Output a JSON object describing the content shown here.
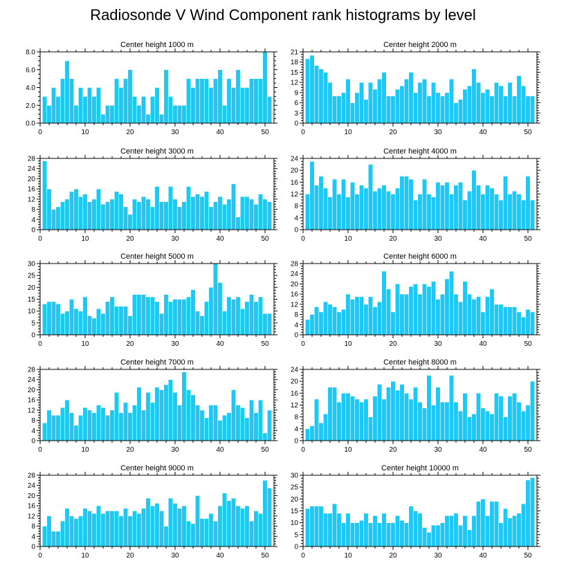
{
  "figure_title": "Radiosonde V Wind Component rank histograms by level",
  "colors": {
    "bar": "#1ec8f5",
    "bar_edge": "#ffffff",
    "axis": "#000000"
  },
  "chart_data": [
    {
      "type": "bar",
      "title": "Center height 1000 m",
      "x": [
        1,
        2,
        3,
        4,
        5,
        6,
        7,
        8,
        9,
        10,
        11,
        12,
        13,
        14,
        15,
        16,
        17,
        18,
        19,
        20,
        21,
        22,
        23,
        24,
        25,
        26,
        27,
        28,
        29,
        30,
        31,
        32,
        33,
        34,
        35,
        36,
        37,
        38,
        39,
        40,
        41,
        42,
        43,
        44,
        45,
        46,
        47,
        48,
        49,
        50,
        51
      ],
      "values": [
        3,
        2,
        4,
        3,
        5,
        7,
        5,
        2,
        4,
        3,
        4,
        3,
        4,
        1,
        2,
        2,
        5,
        4,
        5,
        6,
        3,
        2,
        3,
        1,
        3,
        4,
        1,
        6,
        3,
        2,
        2,
        2,
        5,
        4,
        5,
        5,
        5,
        4,
        5,
        6,
        2,
        5,
        4,
        6,
        4,
        4,
        5,
        5,
        5,
        8,
        3
      ],
      "xlim": [
        0,
        52
      ],
      "ylim": [
        0,
        8
      ],
      "yticks": [
        "0.0",
        "2.0",
        "4.0",
        "6.0",
        "8.0"
      ],
      "ytick_values": [
        0,
        2,
        4,
        6,
        8
      ],
      "xticks": [
        "0",
        "10",
        "20",
        "30",
        "40",
        "50"
      ],
      "xtick_values": [
        0,
        10,
        20,
        30,
        40,
        50
      ]
    },
    {
      "type": "bar",
      "title": "Center height 2000 m",
      "x": [
        1,
        2,
        3,
        4,
        5,
        6,
        7,
        8,
        9,
        10,
        11,
        12,
        13,
        14,
        15,
        16,
        17,
        18,
        19,
        20,
        21,
        22,
        23,
        24,
        25,
        26,
        27,
        28,
        29,
        30,
        31,
        32,
        33,
        34,
        35,
        36,
        37,
        38,
        39,
        40,
        41,
        42,
        43,
        44,
        45,
        46,
        47,
        48,
        49,
        50,
        51
      ],
      "values": [
        19,
        20,
        17,
        16,
        15,
        12,
        8,
        8,
        9,
        13,
        6,
        9,
        12,
        7,
        12,
        10,
        13,
        15,
        8,
        8,
        10,
        11,
        13,
        15,
        9,
        12,
        13,
        8,
        12,
        9,
        8,
        9,
        13,
        6,
        7,
        10,
        11,
        16,
        12,
        9,
        10,
        8,
        12,
        11,
        8,
        12,
        8,
        14,
        11,
        8,
        8
      ],
      "xlim": [
        0,
        52
      ],
      "ylim": [
        0,
        21
      ],
      "yticks": [
        "0",
        "3",
        "6",
        "9",
        "12",
        "15",
        "18",
        "21"
      ],
      "ytick_values": [
        0,
        3,
        6,
        9,
        12,
        15,
        18,
        21
      ],
      "xticks": [
        "0",
        "10",
        "20",
        "30",
        "40",
        "50"
      ],
      "xtick_values": [
        0,
        10,
        20,
        30,
        40,
        50
      ]
    },
    {
      "type": "bar",
      "title": "Center height 3000 m",
      "x": [
        1,
        2,
        3,
        4,
        5,
        6,
        7,
        8,
        9,
        10,
        11,
        12,
        13,
        14,
        15,
        16,
        17,
        18,
        19,
        20,
        21,
        22,
        23,
        24,
        25,
        26,
        27,
        28,
        29,
        30,
        31,
        32,
        33,
        34,
        35,
        36,
        37,
        38,
        39,
        40,
        41,
        42,
        43,
        44,
        45,
        46,
        47,
        48,
        49,
        50,
        51
      ],
      "values": [
        27,
        16,
        8,
        9,
        11,
        12,
        15,
        16,
        13,
        14,
        11,
        12,
        16,
        10,
        11,
        12,
        15,
        14,
        9,
        6,
        12,
        11,
        13,
        12,
        9,
        17,
        11,
        11,
        17,
        12,
        9,
        11,
        17,
        13,
        14,
        13,
        15,
        9,
        11,
        13,
        10,
        12,
        18,
        5,
        13,
        13,
        12,
        10,
        14,
        12,
        11
      ],
      "xlim": [
        0,
        52
      ],
      "ylim": [
        0,
        28
      ],
      "yticks": [
        "0",
        "4",
        "8",
        "12",
        "16",
        "20",
        "24",
        "28"
      ],
      "ytick_values": [
        0,
        4,
        8,
        12,
        16,
        20,
        24,
        28
      ],
      "xticks": [
        "0",
        "10",
        "20",
        "30",
        "40",
        "50"
      ],
      "xtick_values": [
        0,
        10,
        20,
        30,
        40,
        50
      ]
    },
    {
      "type": "bar",
      "title": "Center height 4000 m",
      "x": [
        1,
        2,
        3,
        4,
        5,
        6,
        7,
        8,
        9,
        10,
        11,
        12,
        13,
        14,
        15,
        16,
        17,
        18,
        19,
        20,
        21,
        22,
        23,
        24,
        25,
        26,
        27,
        28,
        29,
        30,
        31,
        32,
        33,
        34,
        35,
        36,
        37,
        38,
        39,
        40,
        41,
        42,
        43,
        44,
        45,
        46,
        47,
        48,
        49,
        50,
        51
      ],
      "values": [
        12,
        23,
        15,
        18,
        14,
        11,
        17,
        12,
        17,
        11,
        16,
        12,
        15,
        14,
        22,
        13,
        14,
        15,
        13,
        12,
        14,
        18,
        18,
        17,
        10,
        12,
        17,
        12,
        11,
        16,
        15,
        16,
        12,
        15,
        16,
        10,
        13,
        20,
        15,
        12,
        15,
        14,
        12,
        10,
        18,
        12,
        13,
        12,
        10,
        18,
        10
      ],
      "xlim": [
        0,
        52
      ],
      "ylim": [
        0,
        24
      ],
      "yticks": [
        "0",
        "4",
        "8",
        "12",
        "16",
        "20",
        "24"
      ],
      "ytick_values": [
        0,
        4,
        8,
        12,
        16,
        20,
        24
      ],
      "xticks": [
        "0",
        "10",
        "20",
        "30",
        "40",
        "50"
      ],
      "xtick_values": [
        0,
        10,
        20,
        30,
        40,
        50
      ]
    },
    {
      "type": "bar",
      "title": "Center height 5000 m",
      "x": [
        1,
        2,
        3,
        4,
        5,
        6,
        7,
        8,
        9,
        10,
        11,
        12,
        13,
        14,
        15,
        16,
        17,
        18,
        19,
        20,
        21,
        22,
        23,
        24,
        25,
        26,
        27,
        28,
        29,
        30,
        31,
        32,
        33,
        34,
        35,
        36,
        37,
        38,
        39,
        40,
        41,
        42,
        43,
        44,
        45,
        46,
        47,
        48,
        49,
        50,
        51
      ],
      "values": [
        13,
        14,
        14,
        13,
        9,
        10,
        15,
        11,
        10,
        16,
        8,
        7,
        11,
        9,
        14,
        16,
        12,
        12,
        12,
        8,
        17,
        17,
        17,
        16,
        16,
        14,
        9,
        17,
        14,
        15,
        15,
        15,
        16,
        19,
        10,
        8,
        14,
        20,
        30,
        22,
        10,
        16,
        15,
        16,
        11,
        14,
        17,
        14,
        16,
        9,
        9
      ],
      "xlim": [
        0,
        52
      ],
      "ylim": [
        0,
        30
      ],
      "yticks": [
        "0",
        "5",
        "10",
        "15",
        "20",
        "25",
        "30"
      ],
      "ytick_values": [
        0,
        5,
        10,
        15,
        20,
        25,
        30
      ],
      "xticks": [
        "0",
        "10",
        "20",
        "30",
        "40",
        "50"
      ],
      "xtick_values": [
        0,
        10,
        20,
        30,
        40,
        50
      ]
    },
    {
      "type": "bar",
      "title": "Center height 6000 m",
      "x": [
        1,
        2,
        3,
        4,
        5,
        6,
        7,
        8,
        9,
        10,
        11,
        12,
        13,
        14,
        15,
        16,
        17,
        18,
        19,
        20,
        21,
        22,
        23,
        24,
        25,
        26,
        27,
        28,
        29,
        30,
        31,
        32,
        33,
        34,
        35,
        36,
        37,
        38,
        39,
        40,
        41,
        42,
        43,
        44,
        45,
        46,
        47,
        48,
        49,
        50,
        51
      ],
      "values": [
        6,
        8,
        11,
        9,
        13,
        12,
        11,
        9,
        10,
        16,
        14,
        15,
        15,
        12,
        15,
        11,
        13,
        25,
        18,
        9,
        20,
        16,
        16,
        19,
        20,
        16,
        20,
        19,
        21,
        14,
        16,
        22,
        25,
        16,
        13,
        21,
        16,
        14,
        15,
        9,
        15,
        18,
        12,
        12,
        11,
        11,
        11,
        9,
        7,
        10,
        9
      ],
      "xlim": [
        0,
        52
      ],
      "ylim": [
        0,
        28
      ],
      "yticks": [
        "0",
        "4",
        "8",
        "12",
        "16",
        "20",
        "24",
        "28"
      ],
      "ytick_values": [
        0,
        4,
        8,
        12,
        16,
        20,
        24,
        28
      ],
      "xticks": [
        "0",
        "10",
        "20",
        "30",
        "40",
        "50"
      ],
      "xtick_values": [
        0,
        10,
        20,
        30,
        40,
        50
      ]
    },
    {
      "type": "bar",
      "title": "Center height 7000 m",
      "x": [
        1,
        2,
        3,
        4,
        5,
        6,
        7,
        8,
        9,
        10,
        11,
        12,
        13,
        14,
        15,
        16,
        17,
        18,
        19,
        20,
        21,
        22,
        23,
        24,
        25,
        26,
        27,
        28,
        29,
        30,
        31,
        32,
        33,
        34,
        35,
        36,
        37,
        38,
        39,
        40,
        41,
        42,
        43,
        44,
        45,
        46,
        47,
        48,
        49,
        50,
        51
      ],
      "values": [
        7,
        12,
        10,
        10,
        13,
        16,
        11,
        6,
        10,
        13,
        12,
        11,
        14,
        13,
        10,
        12,
        19,
        11,
        15,
        11,
        14,
        21,
        12,
        19,
        15,
        21,
        20,
        22,
        24,
        19,
        14,
        27,
        20,
        18,
        14,
        12,
        9,
        14,
        14,
        8,
        10,
        11,
        20,
        14,
        13,
        9,
        16,
        11,
        16,
        3,
        12
      ],
      "xlim": [
        0,
        52
      ],
      "ylim": [
        0,
        28
      ],
      "yticks": [
        "0",
        "4",
        "8",
        "12",
        "16",
        "20",
        "24",
        "28"
      ],
      "ytick_values": [
        0,
        4,
        8,
        12,
        16,
        20,
        24,
        28
      ],
      "xticks": [
        "0",
        "10",
        "20",
        "30",
        "40",
        "50"
      ],
      "xtick_values": [
        0,
        10,
        20,
        30,
        40,
        50
      ]
    },
    {
      "type": "bar",
      "title": "Center height 8000 m",
      "x": [
        1,
        2,
        3,
        4,
        5,
        6,
        7,
        8,
        9,
        10,
        11,
        12,
        13,
        14,
        15,
        16,
        17,
        18,
        19,
        20,
        21,
        22,
        23,
        24,
        25,
        26,
        27,
        28,
        29,
        30,
        31,
        32,
        33,
        34,
        35,
        36,
        37,
        38,
        39,
        40,
        41,
        42,
        43,
        44,
        45,
        46,
        47,
        48,
        49,
        50,
        51
      ],
      "values": [
        4,
        5,
        14,
        6,
        9,
        18,
        18,
        13,
        16,
        16,
        15,
        14,
        13,
        14,
        8,
        15,
        19,
        14,
        18,
        20,
        17,
        19,
        16,
        14,
        18,
        13,
        11,
        22,
        12,
        18,
        13,
        13,
        22,
        13,
        10,
        16,
        8,
        9,
        16,
        11,
        10,
        9,
        16,
        15,
        8,
        15,
        16,
        13,
        10,
        12,
        20
      ],
      "xlim": [
        0,
        52
      ],
      "ylim": [
        0,
        24
      ],
      "yticks": [
        "0",
        "4",
        "8",
        "12",
        "16",
        "20",
        "24"
      ],
      "ytick_values": [
        0,
        4,
        8,
        12,
        16,
        20,
        24
      ],
      "xticks": [
        "0",
        "10",
        "20",
        "30",
        "40",
        "50"
      ],
      "xtick_values": [
        0,
        10,
        20,
        30,
        40,
        50
      ]
    },
    {
      "type": "bar",
      "title": "Center height 9000 m",
      "x": [
        1,
        2,
        3,
        4,
        5,
        6,
        7,
        8,
        9,
        10,
        11,
        12,
        13,
        14,
        15,
        16,
        17,
        18,
        19,
        20,
        21,
        22,
        23,
        24,
        25,
        26,
        27,
        28,
        29,
        30,
        31,
        32,
        33,
        34,
        35,
        36,
        37,
        38,
        39,
        40,
        41,
        42,
        43,
        44,
        45,
        46,
        47,
        48,
        49,
        50,
        51
      ],
      "values": [
        8,
        12,
        6,
        6,
        10,
        15,
        12,
        11,
        12,
        15,
        14,
        13,
        16,
        13,
        14,
        14,
        14,
        12,
        15,
        12,
        14,
        13,
        15,
        19,
        16,
        17,
        14,
        8,
        19,
        17,
        15,
        16,
        10,
        9,
        20,
        11,
        11,
        13,
        10,
        16,
        21,
        18,
        19,
        16,
        15,
        16,
        10,
        14,
        13,
        26,
        23
      ],
      "xlim": [
        0,
        52
      ],
      "ylim": [
        0,
        28
      ],
      "yticks": [
        "0",
        "4",
        "8",
        "12",
        "16",
        "20",
        "24",
        "28"
      ],
      "ytick_values": [
        0,
        4,
        8,
        12,
        16,
        20,
        24,
        28
      ],
      "xticks": [
        "0",
        "10",
        "20",
        "30",
        "40",
        "50"
      ],
      "xtick_values": [
        0,
        10,
        20,
        30,
        40,
        50
      ]
    },
    {
      "type": "bar",
      "title": "Center height 10000 m",
      "x": [
        1,
        2,
        3,
        4,
        5,
        6,
        7,
        8,
        9,
        10,
        11,
        12,
        13,
        14,
        15,
        16,
        17,
        18,
        19,
        20,
        21,
        22,
        23,
        24,
        25,
        26,
        27,
        28,
        29,
        30,
        31,
        32,
        33,
        34,
        35,
        36,
        37,
        38,
        39,
        40,
        41,
        42,
        43,
        44,
        45,
        46,
        47,
        48,
        49,
        50,
        51
      ],
      "values": [
        16,
        17,
        17,
        17,
        14,
        14,
        18,
        14,
        10,
        14,
        10,
        10,
        11,
        14,
        10,
        13,
        10,
        14,
        10,
        10,
        13,
        11,
        10,
        17,
        15,
        14,
        8,
        6,
        9,
        9,
        10,
        13,
        13,
        14,
        9,
        13,
        7,
        13,
        19,
        20,
        13,
        19,
        19,
        10,
        16,
        12,
        13,
        14,
        18,
        28,
        29
      ],
      "xlim": [
        0,
        52
      ],
      "ylim": [
        0,
        30
      ],
      "yticks": [
        "0",
        "5",
        "10",
        "15",
        "20",
        "25",
        "30"
      ],
      "ytick_values": [
        0,
        5,
        10,
        15,
        20,
        25,
        30
      ],
      "xticks": [
        "0",
        "10",
        "20",
        "30",
        "40",
        "50"
      ],
      "xtick_values": [
        0,
        10,
        20,
        30,
        40,
        50
      ]
    }
  ]
}
